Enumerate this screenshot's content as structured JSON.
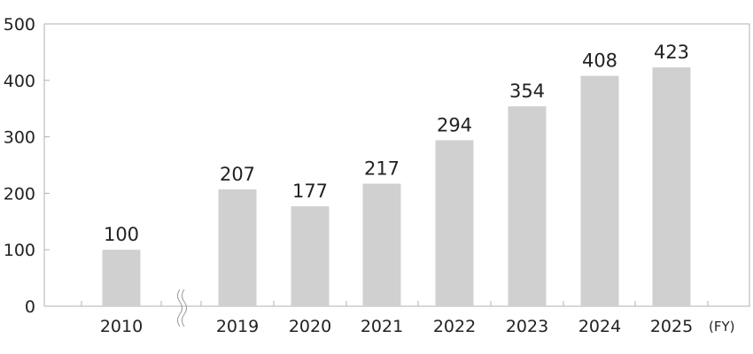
{
  "chart_data": {
    "type": "bar",
    "categories": [
      "2010",
      "2019",
      "2020",
      "2021",
      "2022",
      "2023",
      "2024",
      "2025"
    ],
    "values": [
      100,
      207,
      177,
      217,
      294,
      354,
      408,
      423
    ],
    "data_labels": [
      "100",
      "207",
      "177",
      "217",
      "294",
      "354",
      "408",
      "423"
    ],
    "title": "",
    "xlabel": "(FY)",
    "ylabel": "",
    "ylim": [
      0,
      500
    ],
    "yticks": [
      0,
      100,
      200,
      300,
      400,
      500
    ],
    "ytick_labels": [
      "0",
      "100",
      "200",
      "300",
      "400",
      "500"
    ],
    "axis_break_after_category": "2010",
    "grid": false,
    "legend": "none",
    "colors": {
      "bar": "#d0d0d0",
      "axis": "#b0b0b0",
      "text": "#222222"
    }
  }
}
